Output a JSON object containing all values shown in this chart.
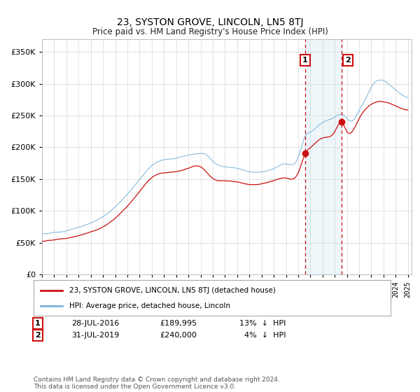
{
  "title": "23, SYSTON GROVE, LINCOLN, LN5 8TJ",
  "subtitle": "Price paid vs. HM Land Registry's House Price Index (HPI)",
  "ytick_values": [
    0,
    50000,
    100000,
    150000,
    200000,
    250000,
    300000,
    350000
  ],
  "ylim": [
    0,
    370000
  ],
  "xlim_start": 1995.0,
  "xlim_end": 2025.3,
  "hpi_color": "#7ab3d9",
  "price_color": "#cc1111",
  "vline_color": "#cc1111",
  "fill_color": "#d0e8f5",
  "sale1_x": 2016.57,
  "sale1_y": 189995,
  "sale2_x": 2019.58,
  "sale2_y": 240000,
  "legend_label1": "23, SYSTON GROVE, LINCOLN, LN5 8TJ (detached house)",
  "legend_label2": "HPI: Average price, detached house, Lincoln",
  "footnote": "Contains HM Land Registry data © Crown copyright and database right 2024.\nThis data is licensed under the Open Government Licence v3.0.",
  "background_color": "#ffffff",
  "grid_color": "#d8d8d8",
  "hpi_anchors_t": [
    1995.0,
    1996.0,
    1997.0,
    1998.0,
    1999.0,
    2000.0,
    2001.0,
    2002.0,
    2003.0,
    2004.0,
    2005.0,
    2006.0,
    2007.0,
    2008.0,
    2008.5,
    2009.0,
    2009.5,
    2010.0,
    2011.0,
    2012.0,
    2013.0,
    2014.0,
    2015.0,
    2016.0,
    2016.57,
    2017.0,
    2018.0,
    2019.0,
    2019.58,
    2020.0,
    2020.5,
    2021.0,
    2021.5,
    2022.0,
    2022.5,
    2023.0,
    2023.5,
    2024.0,
    2024.5,
    2025.0
  ],
  "hpi_anchors_v": [
    63000,
    65000,
    68000,
    73000,
    80000,
    90000,
    105000,
    125000,
    148000,
    170000,
    180000,
    182000,
    188000,
    190000,
    188000,
    178000,
    172000,
    170000,
    168000,
    163000,
    163000,
    168000,
    175000,
    185000,
    218000,
    225000,
    240000,
    248000,
    252000,
    245000,
    242000,
    258000,
    275000,
    295000,
    305000,
    305000,
    298000,
    290000,
    282000,
    278000
  ],
  "price_anchors_t": [
    1995.0,
    1996.0,
    1997.0,
    1998.0,
    1999.0,
    2000.0,
    2001.0,
    2002.0,
    2003.0,
    2004.0,
    2005.0,
    2006.0,
    2007.0,
    2008.0,
    2009.0,
    2010.0,
    2011.0,
    2012.0,
    2013.0,
    2014.0,
    2015.0,
    2016.0,
    2016.57,
    2017.0,
    2018.0,
    2019.0,
    2019.58,
    2020.0,
    2021.0,
    2022.0,
    2023.0,
    2024.0,
    2025.0
  ],
  "price_anchors_v": [
    50000,
    52000,
    55000,
    60000,
    66000,
    74000,
    88000,
    107000,
    130000,
    152000,
    160000,
    162000,
    168000,
    170000,
    152000,
    148000,
    146000,
    142000,
    143000,
    148000,
    152000,
    160000,
    189995,
    200000,
    215000,
    225000,
    240000,
    225000,
    245000,
    268000,
    272000,
    265000,
    258000
  ]
}
